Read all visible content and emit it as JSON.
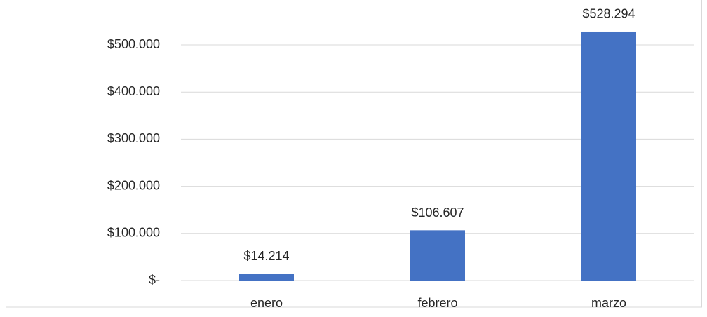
{
  "chart_data": {
    "type": "bar",
    "categories": [
      "enero",
      "febrero",
      "marzo"
    ],
    "values": [
      14214,
      106607,
      528294
    ],
    "value_labels": [
      "$14.214",
      "$106.607",
      "$528.294"
    ],
    "color": "#4472c4",
    "ylim": [
      0,
      600000
    ],
    "yticks": [
      {
        "value": 0,
        "label": "$-"
      },
      {
        "value": 100000,
        "label": "$100.000"
      },
      {
        "value": 200000,
        "label": "$200.000"
      },
      {
        "value": 300000,
        "label": "$300.000"
      },
      {
        "value": 400000,
        "label": "$400.000"
      },
      {
        "value": 500000,
        "label": "$500.000"
      }
    ],
    "grid": true
  }
}
